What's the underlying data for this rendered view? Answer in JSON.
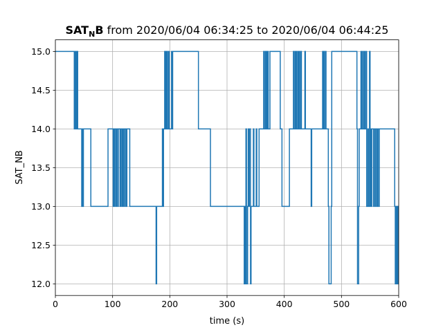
{
  "chart_data": {
    "type": "line",
    "step": true,
    "title": {
      "main": "SAT",
      "subscript": "N",
      "main_suffix": "B",
      "rest": " from 2020/06/04 06:34:25 to 2020/06/04 06:44:25"
    },
    "xlabel": "time (s)",
    "ylabel": "SAT_NB",
    "xlim": [
      0,
      600
    ],
    "ylim": [
      11.85,
      15.15
    ],
    "xticks": [
      0,
      100,
      200,
      300,
      400,
      500,
      600
    ],
    "yticks": [
      12.0,
      12.5,
      13.0,
      13.5,
      14.0,
      14.5,
      15.0
    ],
    "xtick_labels": [
      "0",
      "100",
      "200",
      "300",
      "400",
      "500",
      "600"
    ],
    "ytick_labels": [
      "12.0",
      "12.5",
      "13.0",
      "13.5",
      "14.0",
      "14.5",
      "15.0"
    ],
    "grid": true,
    "line_color": "#1f77b4",
    "series": [
      {
        "x": [
          0,
          33,
          34,
          35,
          36,
          37,
          38,
          39,
          46,
          47,
          48,
          49,
          62,
          92,
          101,
          102,
          103,
          104,
          106,
          107,
          109,
          110,
          113,
          114,
          116,
          117,
          118,
          119,
          121,
          122,
          124,
          125,
          130,
          131,
          176,
          177,
          186,
          187,
          188,
          189,
          191,
          192,
          193,
          194,
          195,
          196,
          198,
          199,
          203,
          204,
          205,
          250,
          271,
          330,
          331,
          332,
          333,
          334,
          336,
          337,
          338,
          339,
          341,
          342,
          346,
          347,
          351,
          352,
          356,
          357,
          364,
          365,
          367,
          368,
          369,
          370,
          371,
          372,
          375,
          376,
          393,
          396,
          409,
          416,
          417,
          419,
          420,
          421,
          422,
          424,
          425,
          426,
          427,
          429,
          430,
          436,
          437,
          447,
          448,
          460,
          467,
          468,
          469,
          470,
          472,
          473,
          477,
          478,
          482,
          483,
          484,
          527,
          528,
          530,
          531,
          534,
          535,
          537,
          538,
          540,
          541,
          543,
          544,
          546,
          547,
          549,
          550,
          551,
          552,
          553,
          555,
          556,
          557,
          559,
          560,
          562,
          563,
          565,
          566,
          570,
          593,
          594,
          595,
          596,
          597,
          598,
          599,
          600
        ],
        "y": [
          15,
          14,
          15,
          14,
          15,
          14,
          15,
          14,
          13,
          14,
          13,
          14,
          13,
          14,
          13,
          14,
          13,
          14,
          13,
          14,
          13,
          14,
          13,
          14,
          13,
          14,
          13,
          14,
          13,
          14,
          13,
          14,
          13,
          13,
          12,
          13,
          13,
          14,
          13,
          14,
          15,
          14,
          15,
          14,
          15,
          14,
          15,
          14,
          15,
          14,
          15,
          14,
          13,
          12,
          13,
          12,
          14,
          12,
          13,
          14,
          13,
          14,
          12,
          13,
          14,
          13,
          14,
          13,
          14,
          14,
          15,
          14,
          15,
          14,
          15,
          14,
          15,
          14,
          15,
          15,
          14,
          13,
          14,
          15,
          14,
          15,
          14,
          15,
          14,
          15,
          14,
          15,
          14,
          15,
          14,
          15,
          14,
          13,
          14,
          14,
          15,
          14,
          15,
          14,
          15,
          14,
          13,
          12,
          13,
          15,
          15,
          14,
          12,
          13,
          14,
          15,
          14,
          15,
          14,
          15,
          14,
          15,
          13,
          14,
          13,
          15,
          13,
          14,
          13,
          14,
          14,
          13,
          14,
          13,
          14,
          13,
          14,
          13,
          14,
          14,
          13,
          12,
          13,
          12,
          13,
          12,
          13,
          13
        ]
      }
    ]
  }
}
